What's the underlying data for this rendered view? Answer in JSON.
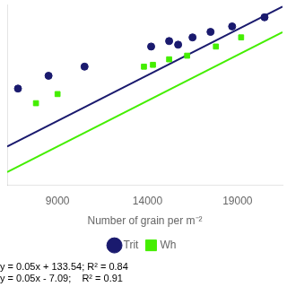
{
  "chart_data": {
    "type": "scatter",
    "xlabel": "Number of grain per m⁻²",
    "xlim": [
      6200,
      21500
    ],
    "xticks": [
      9000,
      14000,
      19000
    ],
    "ylim": [
      230,
      1220
    ],
    "tick_labels": "x",
    "grid": false,
    "legend": "bottom",
    "series": [
      {
        "name": "Trit",
        "color": "#1a1a6e",
        "marker": "circle",
        "x": [
          6800,
          8500,
          10500,
          14200,
          15200,
          15700,
          16500,
          17500,
          18700,
          20500
        ],
        "values": [
          760,
          830,
          880,
          990,
          1020,
          1000,
          1040,
          1070,
          1100,
          1150
        ]
      },
      {
        "name": "Wh",
        "color": "#44ee00",
        "marker": "square",
        "x": [
          7800,
          9000,
          13800,
          14300,
          15200,
          16200,
          17800,
          19200
        ],
        "values": [
          680,
          730,
          880,
          890,
          920,
          940,
          990,
          1040
        ]
      },
      {
        "type": "line",
        "color": "#1a1a6e",
        "x": [
          6200,
          21500
        ],
        "values": [
          443.54,
          1208.54
        ]
      },
      {
        "type": "line",
        "color": "#44ee00",
        "x": [
          6200,
          21500
        ],
        "values": [
          302.91,
          1067.91
        ]
      }
    ],
    "annotations": [
      "y = 0.05x + 133.54; R² = 0.84",
      "y = 0.05x - 7.09;    R² = 0.91"
    ]
  }
}
